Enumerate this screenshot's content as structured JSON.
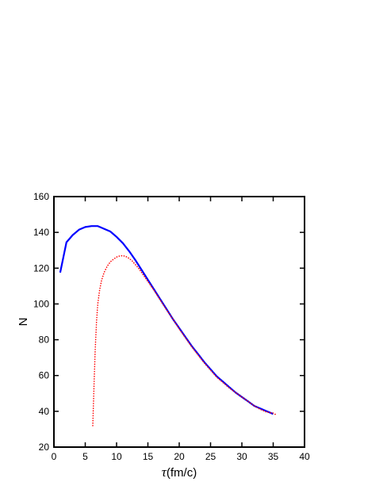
{
  "chart_data": {
    "type": "line",
    "title": "",
    "xlabel_symbol": "τ",
    "xlabel_unit": "(fm/c)",
    "ylabel": "N",
    "xlim": [
      0,
      40
    ],
    "ylim": [
      20,
      160
    ],
    "xticks": [
      0,
      5,
      10,
      15,
      20,
      25,
      30,
      35,
      40
    ],
    "yticks": [
      20,
      40,
      60,
      80,
      100,
      120,
      140,
      160
    ],
    "grid": false,
    "legend": "none",
    "series": [
      {
        "style": "solid",
        "color": "#0000ff",
        "x": [
          1,
          2,
          3,
          4,
          5,
          6,
          7,
          8,
          9,
          10,
          11,
          12,
          13,
          14,
          15,
          16,
          17,
          18,
          19,
          20,
          21,
          22,
          23,
          24,
          25,
          26,
          27,
          28,
          29,
          30,
          31,
          32,
          33,
          34,
          35
        ],
        "y": [
          117.5,
          134.5,
          138.5,
          141.5,
          143,
          143.5,
          143.5,
          142,
          140.5,
          137.5,
          134,
          129.5,
          124.5,
          119,
          113.5,
          108,
          102.5,
          97,
          91.5,
          86.5,
          81.5,
          76.5,
          72,
          67.5,
          63.5,
          59.5,
          56.5,
          53.5,
          50.5,
          48,
          45.5,
          43,
          41.5,
          40,
          38.5
        ]
      },
      {
        "style": "dotted",
        "color": "#ff0000",
        "x": [
          6.2,
          6.4,
          6.6,
          6.8,
          7.0,
          7.3,
          7.6,
          8.0,
          8.5,
          9.0,
          9.5,
          10.0,
          10.5,
          11.0,
          11.5,
          12.0,
          12.5,
          13.0,
          13.5,
          14,
          15,
          16,
          17,
          18,
          19,
          20,
          21,
          22,
          23,
          24,
          25,
          26,
          27,
          28,
          29,
          30,
          31,
          32,
          33,
          34,
          35,
          35.5
        ],
        "y": [
          32,
          55,
          75,
          90,
          100,
          108,
          113,
          117.5,
          121,
          123.5,
          125,
          126.2,
          126.8,
          127,
          126.5,
          125.5,
          124,
          122,
          120,
          117.5,
          112.5,
          107.5,
          102,
          96.5,
          91.5,
          86,
          81,
          76,
          71.5,
          67,
          63,
          59,
          56,
          53,
          50.5,
          48,
          45.5,
          43,
          41,
          39.5,
          39,
          38
        ]
      }
    ]
  }
}
